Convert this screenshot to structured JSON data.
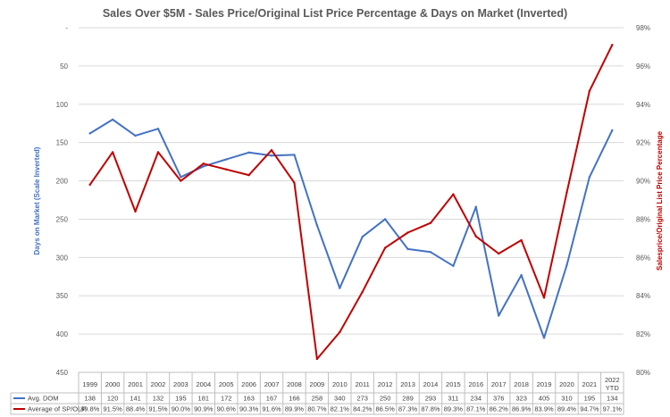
{
  "chart_data": {
    "type": "line",
    "title": "Sales  Over $5M - Sales Price/Original  List Price Percentage & Days on Market  (Inverted)",
    "ylabel_left": "Days on Market (Scale Inverted)",
    "ylabel_right": "Salesprice/Original List Price Percentage",
    "categories": [
      "1999",
      "2000",
      "2001",
      "2002",
      "2003",
      "2004",
      "2005",
      "2006",
      "2007",
      "2008",
      "2009",
      "2010",
      "2011",
      "2012",
      "2013",
      "2014",
      "2015",
      "2016",
      "2017",
      "2018",
      "2019",
      "2020",
      "2021",
      "2022 YTD"
    ],
    "left_axis": {
      "inverted": true,
      "range": [
        0,
        450
      ],
      "ticks": [
        0,
        50,
        100,
        150,
        200,
        250,
        300,
        350,
        400,
        450
      ],
      "tick_labels": [
        "-",
        "50",
        "100",
        "150",
        "200",
        "250",
        "300",
        "350",
        "400",
        "450"
      ]
    },
    "right_axis": {
      "range": [
        80,
        98
      ],
      "ticks": [
        80,
        82,
        84,
        86,
        88,
        90,
        92,
        94,
        96,
        98
      ],
      "tick_labels": [
        "80%",
        "82%",
        "84%",
        "86%",
        "88%",
        "90%",
        "92%",
        "94%",
        "96%",
        "98%"
      ]
    },
    "grid": true,
    "series": [
      {
        "name": "Avg. DOM",
        "axis": "left",
        "color": "#4472C4",
        "values": [
          138,
          120,
          141,
          132,
          195,
          181,
          172,
          163,
          167,
          166,
          258,
          340,
          273,
          250,
          289,
          293,
          311,
          234,
          376,
          323,
          405,
          310,
          195,
          134
        ],
        "labels": [
          "138",
          "120",
          "141",
          "132",
          "195",
          "181",
          "172",
          "163",
          "167",
          "166",
          "258",
          "340",
          "273",
          "250",
          "289",
          "293",
          "311",
          "234",
          "376",
          "323",
          "405",
          "310",
          "195",
          "134"
        ]
      },
      {
        "name": "Average of SP/OLP",
        "axis": "right",
        "color": "#C00000",
        "values": [
          89.8,
          91.5,
          88.4,
          91.5,
          90.0,
          90.9,
          90.6,
          90.3,
          91.6,
          89.9,
          80.7,
          82.1,
          84.2,
          86.5,
          87.3,
          87.8,
          89.3,
          87.1,
          86.2,
          86.9,
          83.9,
          89.4,
          94.7,
          97.1
        ],
        "labels": [
          "89.8%",
          "91.5%",
          "88.4%",
          "91.5%",
          "90.0%",
          "90.9%",
          "90.6%",
          "90.3%",
          "91.6%",
          "89.9%",
          "80.7%",
          "82.1%",
          "84.2%",
          "86.5%",
          "87.3%",
          "87.8%",
          "89.3%",
          "87.1%",
          "86.2%",
          "86.9%",
          "83.9%",
          "89.4%",
          "94.7%",
          "97.1%"
        ]
      }
    ]
  }
}
